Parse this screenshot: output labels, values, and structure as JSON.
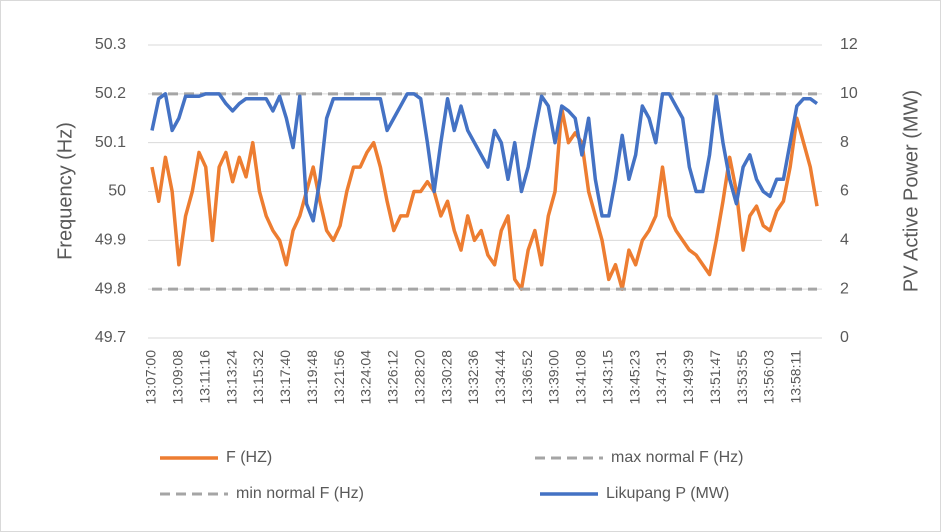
{
  "chart_data": {
    "type": "line",
    "y_label": "Frequency (Hz)",
    "y2_label": "PV Active Power (MW)",
    "categories": [
      "13:07:00",
      null,
      null,
      null,
      "13:09:08",
      null,
      null,
      null,
      "13:11:16",
      null,
      null,
      null,
      "13:13:24",
      null,
      null,
      null,
      "13:15:32",
      null,
      null,
      null,
      "13:17:40",
      null,
      null,
      null,
      "13:19:48",
      null,
      null,
      null,
      "13:21:56",
      null,
      null,
      null,
      "13:24:04",
      null,
      null,
      null,
      "13:26:12",
      null,
      null,
      null,
      "13:28:20",
      null,
      null,
      null,
      "13:30:28",
      null,
      null,
      null,
      "13:32:36",
      null,
      null,
      null,
      "13:34:44",
      null,
      null,
      null,
      "13:36:52",
      null,
      null,
      null,
      "13:39:00",
      null,
      null,
      null,
      "13:41:08",
      null,
      null,
      null,
      "13:43:15",
      null,
      null,
      null,
      "13:45:23",
      null,
      null,
      null,
      "13:47:31",
      null,
      null,
      null,
      "13:49:39",
      null,
      null,
      null,
      "13:51:47",
      null,
      null,
      null,
      "13:53:55",
      null,
      null,
      null,
      "13:56:03",
      null,
      null,
      null,
      "13:58:11",
      null,
      null,
      null
    ],
    "series": [
      {
        "name": "F (HZ)",
        "color": "#ed7d31",
        "dashed": false,
        "values": [
          50.05,
          49.98,
          50.07,
          50.0,
          49.85,
          49.95,
          50.0,
          50.08,
          50.05,
          49.9,
          50.05,
          50.08,
          50.02,
          50.07,
          50.03,
          50.1,
          50.0,
          49.95,
          49.92,
          49.9,
          49.85,
          49.92,
          49.95,
          50.0,
          50.05,
          49.98,
          49.92,
          49.9,
          49.93,
          50.0,
          50.05,
          50.05,
          50.08,
          50.1,
          50.05,
          49.98,
          49.92,
          49.95,
          49.95,
          50.0,
          50.0,
          50.02,
          50.0,
          49.95,
          49.98,
          49.92,
          49.88,
          49.95,
          49.9,
          49.92,
          49.87,
          49.85,
          49.92,
          49.95,
          49.82,
          49.8,
          49.88,
          49.92,
          49.85,
          49.95,
          50.0,
          50.17,
          50.1,
          50.12,
          50.1,
          50.0,
          49.95,
          49.9,
          49.82,
          49.85,
          49.8,
          49.88,
          49.85,
          49.9,
          49.92,
          49.95,
          50.05,
          49.95,
          49.92,
          49.9,
          49.88,
          49.87,
          49.85,
          49.83,
          49.9,
          49.98,
          50.07,
          50.0,
          49.88,
          49.95,
          49.97,
          49.93,
          49.92,
          49.96,
          49.98,
          50.05,
          50.15,
          50.1,
          50.05,
          49.97
        ]
      },
      {
        "name": "max normal F (Hz)",
        "color": "#a5a5a5",
        "dashed": true,
        "values": [
          50.2,
          50.2,
          50.2,
          50.2,
          50.2,
          50.2,
          50.2,
          50.2,
          50.2,
          50.2,
          50.2,
          50.2,
          50.2,
          50.2,
          50.2,
          50.2,
          50.2,
          50.2,
          50.2,
          50.2,
          50.2,
          50.2,
          50.2,
          50.2,
          50.2,
          50.2,
          50.2,
          50.2,
          50.2,
          50.2,
          50.2,
          50.2,
          50.2,
          50.2,
          50.2,
          50.2,
          50.2,
          50.2,
          50.2,
          50.2,
          50.2,
          50.2,
          50.2,
          50.2,
          50.2,
          50.2,
          50.2,
          50.2,
          50.2,
          50.2,
          50.2,
          50.2,
          50.2,
          50.2,
          50.2,
          50.2,
          50.2,
          50.2,
          50.2,
          50.2,
          50.2,
          50.2,
          50.2,
          50.2,
          50.2,
          50.2,
          50.2,
          50.2,
          50.2,
          50.2,
          50.2,
          50.2,
          50.2,
          50.2,
          50.2,
          50.2,
          50.2,
          50.2,
          50.2,
          50.2,
          50.2,
          50.2,
          50.2,
          50.2,
          50.2,
          50.2,
          50.2,
          50.2,
          50.2,
          50.2,
          50.2,
          50.2,
          50.2,
          50.2,
          50.2,
          50.2,
          50.2,
          50.2,
          50.2,
          50.2
        ]
      },
      {
        "name": "min normal F (Hz)",
        "color": "#a5a5a5",
        "dashed": true,
        "values": [
          49.8,
          49.8,
          49.8,
          49.8,
          49.8,
          49.8,
          49.8,
          49.8,
          49.8,
          49.8,
          49.8,
          49.8,
          49.8,
          49.8,
          49.8,
          49.8,
          49.8,
          49.8,
          49.8,
          49.8,
          49.8,
          49.8,
          49.8,
          49.8,
          49.8,
          49.8,
          49.8,
          49.8,
          49.8,
          49.8,
          49.8,
          49.8,
          49.8,
          49.8,
          49.8,
          49.8,
          49.8,
          49.8,
          49.8,
          49.8,
          49.8,
          49.8,
          49.8,
          49.8,
          49.8,
          49.8,
          49.8,
          49.8,
          49.8,
          49.8,
          49.8,
          49.8,
          49.8,
          49.8,
          49.8,
          49.8,
          49.8,
          49.8,
          49.8,
          49.8,
          49.8,
          49.8,
          49.8,
          49.8,
          49.8,
          49.8,
          49.8,
          49.8,
          49.8,
          49.8,
          49.8,
          49.8,
          49.8,
          49.8,
          49.8,
          49.8,
          49.8,
          49.8,
          49.8,
          49.8,
          49.8,
          49.8,
          49.8,
          49.8,
          49.8,
          49.8,
          49.8,
          49.8,
          49.8,
          49.8,
          49.8,
          49.8,
          49.8,
          49.8,
          49.8,
          49.8,
          49.8,
          49.8,
          49.8,
          49.8
        ]
      },
      {
        "name": "Likupang P (MW)",
        "color": "#4472c4",
        "dashed": false,
        "axis": "y2",
        "values": [
          8.5,
          9.8,
          10,
          8.5,
          9.0,
          9.9,
          9.9,
          9.9,
          10,
          10,
          10,
          9.6,
          9.3,
          9.6,
          9.8,
          9.8,
          9.8,
          9.8,
          9.3,
          9.9,
          9.0,
          7.8,
          9.9,
          5.5,
          4.8,
          6.5,
          9.0,
          9.8,
          9.8,
          9.8,
          9.8,
          9.8,
          9.8,
          9.8,
          9.8,
          8.5,
          9.0,
          9.5,
          10,
          10,
          9.8,
          8.0,
          6.0,
          8.0,
          9.8,
          8.5,
          9.5,
          8.5,
          8.0,
          7.5,
          7.0,
          8.5,
          8.0,
          6.5,
          8.0,
          6.0,
          7.0,
          8.5,
          9.9,
          9.5,
          8.0,
          9.5,
          9.3,
          9.0,
          7.5,
          9.0,
          6.5,
          5.0,
          5.0,
          6.5,
          8.3,
          6.5,
          7.5,
          9.5,
          9.0,
          8.0,
          10,
          10,
          9.5,
          9.0,
          7.0,
          6.0,
          6.0,
          7.5,
          9.9,
          8.0,
          6.5,
          5.5,
          7.0,
          7.5,
          6.5,
          6.0,
          5.8,
          6.5,
          6.5,
          8.0,
          9.5,
          9.8,
          9.8,
          9.6
        ]
      }
    ],
    "ylim": [
      49.7,
      50.3
    ],
    "yticks": [
      49.7,
      49.8,
      49.9,
      50,
      50.1,
      50.2,
      50.3
    ],
    "y2lim": [
      0,
      12
    ],
    "y2ticks": [
      0,
      2,
      4,
      6,
      8,
      10,
      12
    ],
    "grid": true
  }
}
